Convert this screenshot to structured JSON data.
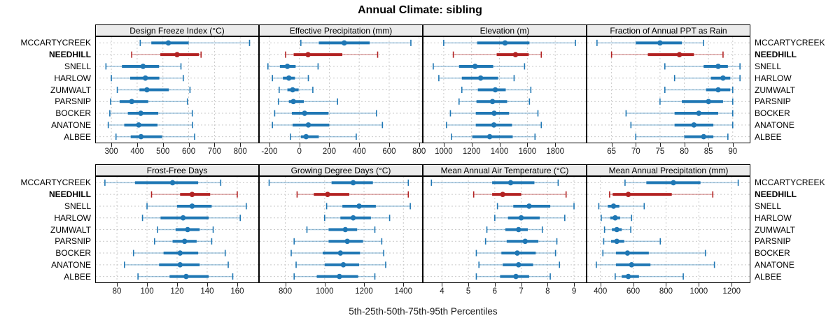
{
  "title": "Annual Climate: sibling",
  "caption": "5th-25th-50th-75th-95th Percentiles",
  "sites": [
    "MCCARTYCREEK",
    "NEEDHILL",
    "SNELL",
    "HARLOW",
    "ZUMWALT",
    "PARSNIP",
    "BOCKER",
    "ANATONE",
    "ALBEE"
  ],
  "highlight_site": "NEEDHILL",
  "colors": {
    "series": "#1F77B4",
    "series_light": "rgba(31,119,180,0.40)",
    "highlight": "#B22222",
    "highlight_light": "rgba(178,34,34,0.40)",
    "header_bg": "#EBEBEB",
    "grid": "#C9C9C9",
    "border": "#000000"
  },
  "chart_data": [
    {
      "type": "scatter",
      "style": "percentile-intervals",
      "title": "Design Freeze Index (°C)",
      "percentile_labels": [
        "5th",
        "25th",
        "50th",
        "75th",
        "95th"
      ],
      "xlim": [
        240,
        870
      ],
      "ticks": [
        300,
        400,
        500,
        600,
        700,
        800
      ],
      "series": [
        {
          "name": "MCCARTYCREEK",
          "values": [
            412,
            455,
            521,
            600,
            836
          ]
        },
        {
          "name": "NEEDHILL",
          "values": [
            379,
            490,
            555,
            640,
            648
          ]
        },
        {
          "name": "SNELL",
          "values": [
            279,
            341,
            423,
            485,
            570
          ]
        },
        {
          "name": "HARLOW",
          "values": [
            300,
            373,
            432,
            486,
            579
          ]
        },
        {
          "name": "ZUMWALT",
          "values": [
            323,
            409,
            438,
            523,
            605
          ]
        },
        {
          "name": "PARSNIP",
          "values": [
            297,
            332,
            379,
            443,
            595
          ]
        },
        {
          "name": "BOCKER",
          "values": [
            294,
            364,
            414,
            482,
            614
          ]
        },
        {
          "name": "ANATONE",
          "values": [
            288,
            350,
            406,
            479,
            615
          ]
        },
        {
          "name": "ALBEE",
          "values": [
            318,
            375,
            415,
            497,
            623
          ]
        }
      ]
    },
    {
      "type": "scatter",
      "style": "percentile-intervals",
      "title": "Effective Precipitation (mm)",
      "percentile_labels": [
        "5th",
        "25th",
        "50th",
        "75th",
        "95th"
      ],
      "xlim": [
        -265,
        820
      ],
      "ticks": [
        -200,
        0,
        200,
        400,
        600,
        800
      ],
      "series": [
        {
          "name": "MCCARTYCREEK",
          "values": [
            10,
            130,
            300,
            470,
            745
          ]
        },
        {
          "name": "NEEDHILL",
          "values": [
            -92,
            -38,
            58,
            287,
            523
          ]
        },
        {
          "name": "SNELL",
          "values": [
            -210,
            -130,
            -80,
            -25,
            125
          ]
        },
        {
          "name": "HARLOW",
          "values": [
            -180,
            -110,
            -70,
            -30,
            60
          ]
        },
        {
          "name": "ZUMWALT",
          "values": [
            -135,
            -80,
            -45,
            -5,
            90
          ]
        },
        {
          "name": "PARSNIP",
          "values": [
            -140,
            -70,
            -40,
            30,
            255
          ]
        },
        {
          "name": "BOCKER",
          "values": [
            -165,
            -50,
            35,
            195,
            515
          ]
        },
        {
          "name": "ANATONE",
          "values": [
            -180,
            -45,
            60,
            200,
            555
          ]
        },
        {
          "name": "ALBEE",
          "values": [
            -60,
            10,
            45,
            130,
            380
          ]
        }
      ]
    },
    {
      "type": "scatter",
      "style": "percentile-intervals",
      "title": "Elevation (m)",
      "percentile_labels": [
        "5th",
        "25th",
        "50th",
        "75th",
        "95th"
      ],
      "xlim": [
        855,
        2020
      ],
      "ticks": [
        1000,
        1200,
        1400,
        1600,
        1800
      ],
      "series": [
        {
          "name": "MCCARTYCREEK",
          "values": [
            1000,
            1240,
            1440,
            1615,
            1945
          ]
        },
        {
          "name": "NEEDHILL",
          "values": [
            1069,
            1380,
            1515,
            1610,
            1700
          ]
        },
        {
          "name": "SNELL",
          "values": [
            925,
            1110,
            1225,
            1355,
            1580
          ]
        },
        {
          "name": "HARLOW",
          "values": [
            965,
            1130,
            1265,
            1390,
            1505
          ]
        },
        {
          "name": "ZUMWALT",
          "values": [
            1130,
            1245,
            1370,
            1445,
            1625
          ]
        },
        {
          "name": "PARSNIP",
          "values": [
            1110,
            1235,
            1350,
            1455,
            1615
          ]
        },
        {
          "name": "BOCKER",
          "values": [
            1048,
            1230,
            1362,
            1469,
            1676
          ]
        },
        {
          "name": "ANATONE",
          "values": [
            1020,
            1230,
            1360,
            1490,
            1700
          ]
        },
        {
          "name": "ALBEE",
          "values": [
            1055,
            1205,
            1330,
            1495,
            1655
          ]
        }
      ]
    },
    {
      "type": "scatter",
      "style": "percentile-intervals",
      "title": "Fraction of Annual PPT as Rain",
      "percentile_labels": [
        "5th",
        "25th",
        "50th",
        "75th",
        "95th"
      ],
      "xlim": [
        60,
        93.5
      ],
      "ticks": [
        65,
        70,
        75,
        80,
        85,
        90
      ],
      "series": [
        {
          "name": "MCCARTYCREEK",
          "values": [
            62,
            70,
            75,
            79.5,
            84
          ]
        },
        {
          "name": "NEEDHILL",
          "values": [
            65,
            72.5,
            79,
            82,
            88
          ]
        },
        {
          "name": "SNELL",
          "values": [
            76,
            84,
            87,
            89,
            91.5
          ]
        },
        {
          "name": "HARLOW",
          "values": [
            78,
            85.5,
            88,
            89.5,
            91.5
          ]
        },
        {
          "name": "ZUMWALT",
          "values": [
            76,
            84.5,
            87,
            89.5,
            90
          ]
        },
        {
          "name": "PARSNIP",
          "values": [
            75,
            79.5,
            85,
            88,
            90
          ]
        },
        {
          "name": "BOCKER",
          "values": [
            68,
            78,
            83,
            87,
            90
          ]
        },
        {
          "name": "ANATONE",
          "values": [
            69,
            78,
            82,
            86,
            90
          ]
        },
        {
          "name": "ALBEE",
          "values": [
            70,
            80,
            84,
            86,
            89
          ]
        }
      ]
    },
    {
      "type": "scatter",
      "style": "percentile-intervals",
      "title": "Frost-Free Days",
      "percentile_labels": [
        "5th",
        "25th",
        "50th",
        "75th",
        "95th"
      ],
      "xlim": [
        66,
        174
      ],
      "ticks": [
        80,
        100,
        120,
        140,
        160
      ],
      "series": [
        {
          "name": "MCCARTYCREEK",
          "values": [
            72,
            92,
            117,
            134,
            149
          ]
        },
        {
          "name": "NEEDHILL",
          "values": [
            103,
            122,
            130,
            142,
            160
          ]
        },
        {
          "name": "SNELL",
          "values": [
            100,
            120,
            130,
            143,
            166
          ]
        },
        {
          "name": "HARLOW",
          "values": [
            97,
            109,
            124,
            141,
            162
          ]
        },
        {
          "name": "ZUMWALT",
          "values": [
            107,
            119,
            127,
            135,
            144
          ]
        },
        {
          "name": "PARSNIP",
          "values": [
            105,
            117,
            125,
            133,
            143
          ]
        },
        {
          "name": "BOCKER",
          "values": [
            91,
            111,
            122,
            134,
            152
          ]
        },
        {
          "name": "ANATONE",
          "values": [
            85,
            108,
            122,
            135,
            154
          ]
        },
        {
          "name": "ALBEE",
          "values": [
            94,
            115,
            126,
            141,
            157
          ]
        }
      ]
    },
    {
      "type": "scatter",
      "style": "percentile-intervals",
      "title": "Growing Degree Days (°C)",
      "percentile_labels": [
        "5th",
        "25th",
        "50th",
        "75th",
        "95th"
      ],
      "xlim": [
        670,
        1495
      ],
      "ticks": [
        800,
        1000,
        1200,
        1400
      ],
      "series": [
        {
          "name": "MCCARTYCREEK",
          "values": [
            718,
            1035,
            1145,
            1245,
            1425
          ]
        },
        {
          "name": "NEEDHILL",
          "values": [
            860,
            945,
            1015,
            1125,
            1425
          ]
        },
        {
          "name": "SNELL",
          "values": [
            1010,
            1090,
            1175,
            1260,
            1435
          ]
        },
        {
          "name": "HARLOW",
          "values": [
            1000,
            1080,
            1145,
            1235,
            1330
          ]
        },
        {
          "name": "ZUMWALT",
          "values": [
            910,
            1020,
            1105,
            1165,
            1255
          ]
        },
        {
          "name": "PARSNIP",
          "values": [
            845,
            1020,
            1115,
            1195,
            1290
          ]
        },
        {
          "name": "BOCKER",
          "values": [
            830,
            990,
            1080,
            1180,
            1300
          ]
        },
        {
          "name": "ANATONE",
          "values": [
            855,
            1000,
            1095,
            1175,
            1310
          ]
        },
        {
          "name": "ALBEE",
          "values": [
            845,
            960,
            1075,
            1170,
            1255
          ]
        }
      ]
    },
    {
      "type": "scatter",
      "style": "percentile-intervals",
      "title": "Mean Annual Air Temperature (°C)",
      "percentile_labels": [
        "5th",
        "25th",
        "50th",
        "75th",
        "95th"
      ],
      "xlim": [
        3.3,
        9.45
      ],
      "ticks": [
        4,
        5,
        6,
        7,
        8,
        9
      ],
      "series": [
        {
          "name": "MCCARTYCREEK",
          "values": [
            3.6,
            5.9,
            6.6,
            7.5,
            8.4
          ]
        },
        {
          "name": "NEEDHILL",
          "values": [
            5.2,
            5.9,
            6.3,
            7.0,
            8.7
          ]
        },
        {
          "name": "SNELL",
          "values": [
            6.1,
            6.7,
            7.3,
            8.1,
            9.0
          ]
        },
        {
          "name": "HARLOW",
          "values": [
            6.0,
            6.5,
            7.0,
            7.7,
            8.65
          ]
        },
        {
          "name": "ZUMWALT",
          "values": [
            5.7,
            6.4,
            6.9,
            7.25,
            7.8
          ]
        },
        {
          "name": "PARSNIP",
          "values": [
            5.65,
            6.45,
            7.15,
            7.65,
            8.35
          ]
        },
        {
          "name": "BOCKER",
          "values": [
            5.3,
            6.25,
            6.85,
            7.55,
            8.3
          ]
        },
        {
          "name": "ANATONE",
          "values": [
            5.4,
            6.3,
            6.9,
            7.45,
            8.45
          ]
        },
        {
          "name": "ALBEE",
          "values": [
            5.3,
            6.2,
            6.8,
            7.3,
            8.1
          ]
        }
      ]
    },
    {
      "type": "scatter",
      "style": "percentile-intervals",
      "title": "Mean Annual Precipitation (mm)",
      "percentile_labels": [
        "5th",
        "25th",
        "50th",
        "75th",
        "95th"
      ],
      "xlim": [
        320,
        1310
      ],
      "ticks": [
        400,
        600,
        800,
        1000,
        1200
      ],
      "series": [
        {
          "name": "MCCARTYCREEK",
          "values": [
            550,
            680,
            845,
            1010,
            1240
          ]
        },
        {
          "name": "NEEDHILL",
          "values": [
            456,
            475,
            570,
            835,
            1085
          ]
        },
        {
          "name": "SNELL",
          "values": [
            390,
            445,
            480,
            515,
            667
          ]
        },
        {
          "name": "HARLOW",
          "values": [
            405,
            460,
            490,
            520,
            590
          ]
        },
        {
          "name": "ZUMWALT",
          "values": [
            425,
            470,
            500,
            530,
            585
          ]
        },
        {
          "name": "PARSNIP",
          "values": [
            420,
            465,
            500,
            545,
            765
          ]
        },
        {
          "name": "BOCKER",
          "values": [
            415,
            495,
            565,
            695,
            1040
          ]
        },
        {
          "name": "ANATONE",
          "values": [
            375,
            495,
            590,
            705,
            1095
          ]
        },
        {
          "name": "ALBEE",
          "values": [
            490,
            530,
            570,
            635,
            905
          ]
        }
      ]
    }
  ]
}
